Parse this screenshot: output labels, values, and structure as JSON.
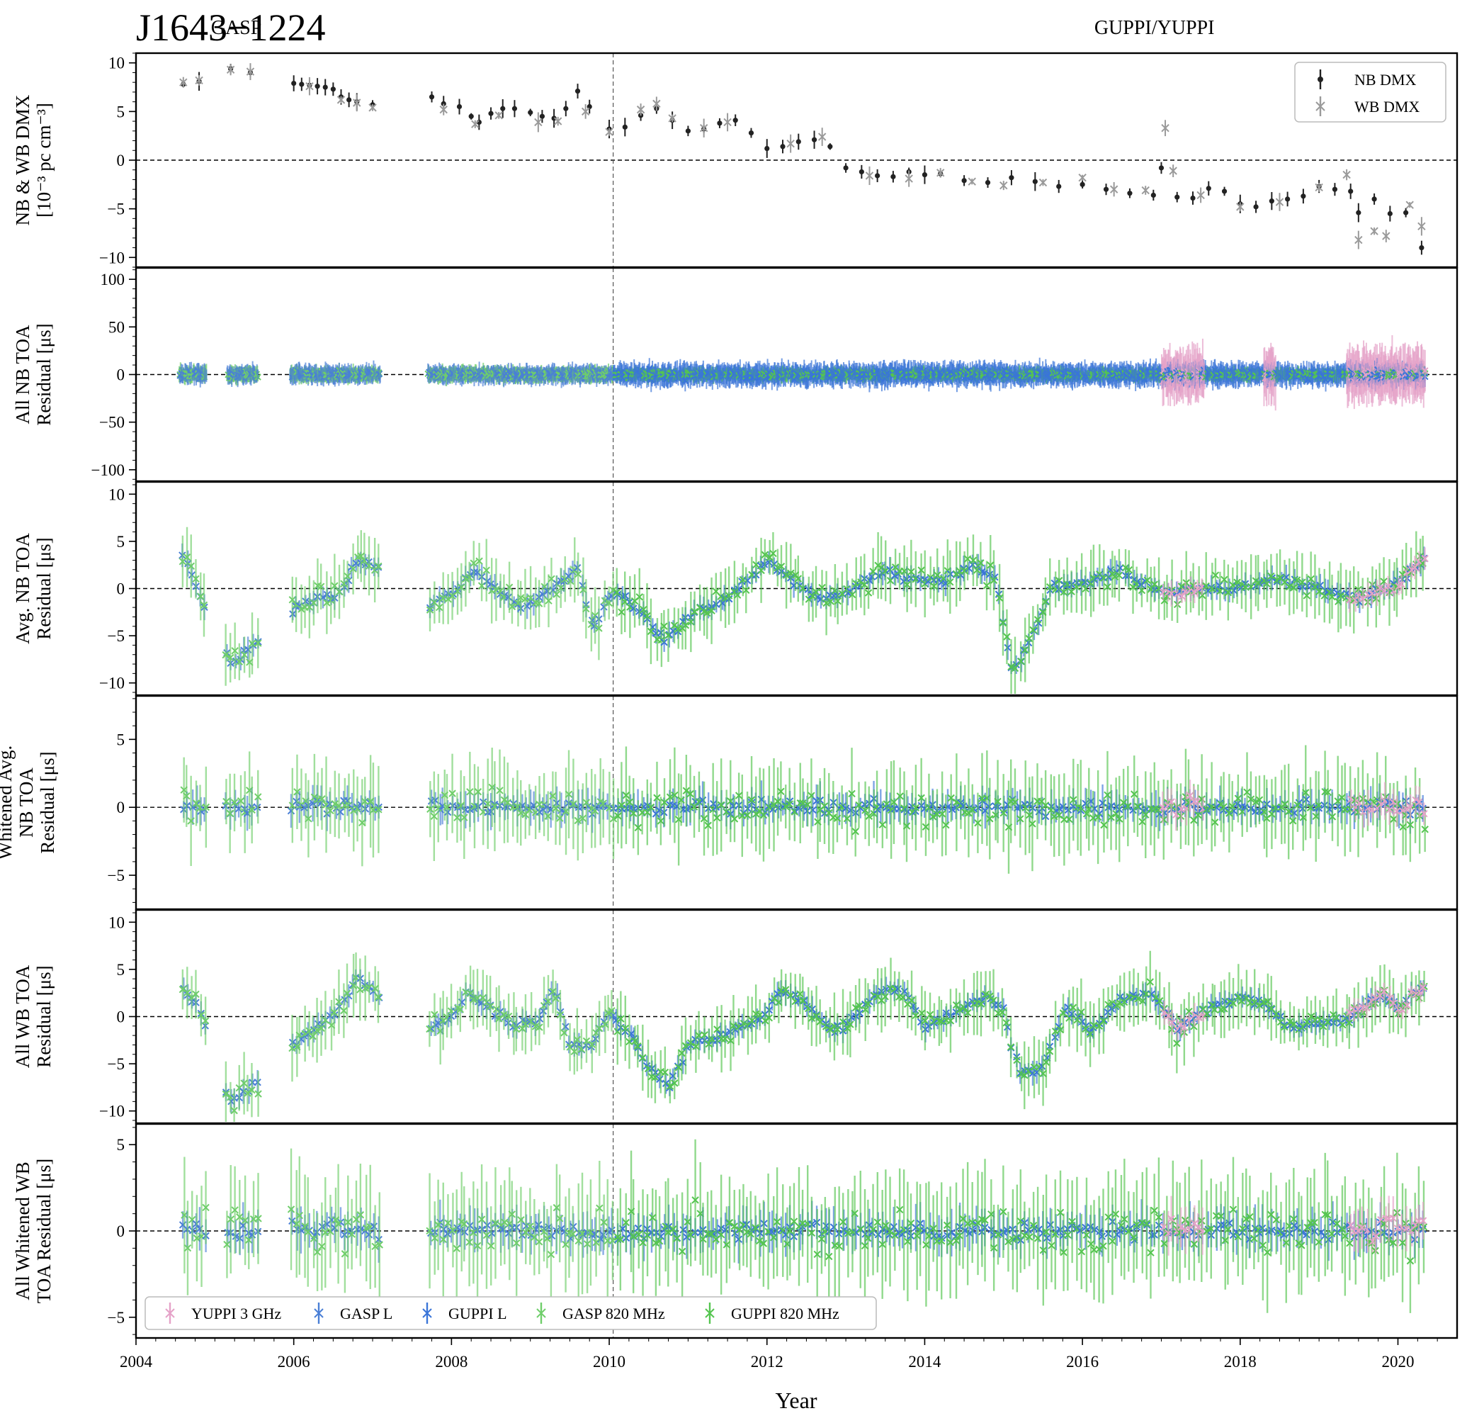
{
  "title": "J1643−1224",
  "backends": [
    {
      "label": "GASP",
      "year": 2004.95
    },
    {
      "label": "GUPPI/YUPPI",
      "year": 2016.15
    }
  ],
  "backend_split_year": 2010.05,
  "xlabel": "Year",
  "xlim": [
    2004.0,
    2020.75
  ],
  "xticks": [
    2004,
    2006,
    2008,
    2010,
    2012,
    2014,
    2016,
    2018,
    2020
  ],
  "colors": {
    "YUPPI 3 GHz": "#e5a2c8",
    "GASP L": "#4a7fd6",
    "GUPPI L": "#3a75d8",
    "GASP 820 MHz": "#6fce6a",
    "GUPPI 820 MHz": "#55c550",
    "NB DMX": "#222222",
    "WB DMX": "#9a9a9a"
  },
  "legend_top": [
    "NB DMX",
    "WB DMX"
  ],
  "legend_bottom": [
    "YUPPI 3 GHz",
    "GASP L",
    "GUPPI L",
    "GASP 820 MHz",
    "GUPPI 820 MHz"
  ],
  "chart_data": [
    {
      "type": "scatter",
      "ylabel": [
        "NB & WB DMX",
        "[10⁻³ pc cm⁻³]"
      ],
      "ylim": [
        -11,
        11
      ],
      "yticks": [
        -10,
        -5,
        0,
        5,
        10
      ],
      "legend": "top-right",
      "series": [
        {
          "name": "NB DMX",
          "marker": "dot",
          "x": [
            2004.6,
            2004.8,
            2005.2,
            2005.45,
            2006.0,
            2006.1,
            2006.2,
            2006.3,
            2006.4,
            2006.5,
            2006.6,
            2006.7,
            2006.8,
            2007.0,
            2007.75,
            2007.9,
            2008.1,
            2008.25,
            2008.35,
            2008.5,
            2008.65,
            2008.8,
            2009.0,
            2009.15,
            2009.3,
            2009.45,
            2009.6,
            2009.75,
            2010.0,
            2010.2,
            2010.4,
            2010.6,
            2010.8,
            2011.0,
            2011.2,
            2011.4,
            2011.6,
            2011.8,
            2012.0,
            2012.2,
            2012.4,
            2012.6,
            2012.8,
            2013.0,
            2013.2,
            2013.4,
            2013.6,
            2013.8,
            2014.0,
            2014.2,
            2014.5,
            2014.8,
            2015.1,
            2015.4,
            2015.7,
            2016.0,
            2016.3,
            2016.6,
            2016.9,
            2017.0,
            2017.2,
            2017.4,
            2017.6,
            2017.8,
            2018.0,
            2018.2,
            2018.4,
            2018.6,
            2018.8,
            2019.0,
            2019.2,
            2019.4,
            2019.5,
            2019.7,
            2019.9,
            2020.1,
            2020.3
          ],
          "y": [
            7.8,
            8.1,
            9.4,
            9.0,
            7.9,
            7.8,
            7.7,
            7.6,
            7.5,
            7.3,
            6.5,
            6.2,
            6.0,
            5.7,
            6.5,
            5.8,
            5.5,
            4.5,
            3.9,
            4.8,
            5.3,
            5.3,
            4.9,
            4.5,
            4.3,
            5.3,
            7.1,
            5.5,
            3.2,
            3.4,
            4.6,
            5.3,
            4.1,
            3.0,
            3.2,
            3.8,
            4.1,
            2.8,
            1.2,
            1.4,
            1.9,
            2.1,
            1.4,
            -0.8,
            -1.2,
            -1.6,
            -1.7,
            -1.2,
            -1.5,
            -1.4,
            -2.1,
            -2.3,
            -1.8,
            -2.2,
            -2.7,
            -2.5,
            -3.0,
            -3.4,
            -3.6,
            -0.8,
            -3.8,
            -3.9,
            -2.9,
            -3.2,
            -4.5,
            -4.8,
            -4.2,
            -4.0,
            -3.7,
            -2.7,
            -3.0,
            -3.2,
            -5.4,
            -4.0,
            -5.5,
            -5.4,
            -9.0
          ]
        },
        {
          "name": "WB DMX",
          "marker": "x",
          "x": [
            2004.6,
            2004.8,
            2005.2,
            2005.45,
            2006.2,
            2006.6,
            2006.8,
            2007.0,
            2007.9,
            2008.3,
            2008.6,
            2009.1,
            2009.35,
            2009.7,
            2010.0,
            2010.4,
            2010.6,
            2010.8,
            2011.2,
            2011.5,
            2012.3,
            2012.7,
            2013.3,
            2013.8,
            2014.2,
            2014.6,
            2015.0,
            2015.5,
            2016.0,
            2016.4,
            2016.8,
            2017.05,
            2017.15,
            2017.5,
            2018.0,
            2018.5,
            2019.0,
            2019.35,
            2019.5,
            2019.7,
            2019.85,
            2020.15,
            2020.3
          ],
          "y": [
            8.0,
            8.2,
            9.3,
            9.1,
            7.6,
            6.2,
            5.9,
            5.4,
            5.2,
            3.7,
            4.6,
            3.9,
            4.0,
            5.0,
            2.9,
            5.2,
            5.8,
            4.3,
            3.3,
            3.9,
            1.7,
            2.4,
            -1.6,
            -1.9,
            -1.3,
            -2.2,
            -2.6,
            -2.3,
            -1.8,
            -3.0,
            -3.1,
            3.3,
            -1.1,
            -3.6,
            -4.8,
            -4.3,
            -2.8,
            -1.5,
            -8.2,
            -7.3,
            -7.8,
            -4.6,
            -6.8
          ]
        }
      ]
    },
    {
      "type": "scatter",
      "ylabel": [
        "All NB TOA",
        "Residual [μs]"
      ],
      "ylim": [
        -112,
        112
      ],
      "yticks": [
        -100,
        -50,
        0,
        50,
        100
      ],
      "spread_by_group": {
        "GASP L": 8,
        "GUPPI L": 10,
        "GASP 820 MHz": 7,
        "GUPPI 820 MHz": 6,
        "YUPPI 3 GHz": 24
      }
    },
    {
      "type": "scatter",
      "ylabel": [
        "Avg. NB TOA",
        "Residual [μs]"
      ],
      "ylim": [
        -11.3,
        11.3
      ],
      "yticks": [
        -10,
        -5,
        0,
        5,
        10
      ],
      "trend_x": [
        2004.6,
        2005.2,
        2005.5,
        2006.0,
        2006.3,
        2006.6,
        2006.8,
        2007.0,
        2007.75,
        2008.0,
        2008.3,
        2008.6,
        2008.9,
        2009.3,
        2009.6,
        2009.8,
        2010.0,
        2010.3,
        2010.7,
        2011.0,
        2011.5,
        2012.0,
        2012.3,
        2012.6,
        2013.0,
        2013.5,
        2013.8,
        2014.2,
        2014.6,
        2014.9,
        2015.1,
        2015.3,
        2015.6,
        2016.0,
        2016.5,
        2017.0,
        2017.5,
        2018.0,
        2018.5,
        2019.0,
        2019.5,
        2020.0,
        2020.3
      ],
      "trend_y": [
        3.5,
        -8.0,
        -6.0,
        -2.0,
        -1.0,
        -0.5,
        3.0,
        2.5,
        -2.0,
        -0.5,
        2.0,
        -0.5,
        -2.0,
        0.0,
        2.0,
        -4.5,
        -0.5,
        -1.5,
        -5.5,
        -3.0,
        -1.0,
        3.0,
        1.0,
        -1.0,
        -0.5,
        2.0,
        1.0,
        0.5,
        2.5,
        1.0,
        -8.5,
        -6.5,
        0.0,
        0.5,
        2.0,
        -0.5,
        0.0,
        0.0,
        1.0,
        0.0,
        -1.0,
        0.5,
        3.0
      ]
    },
    {
      "type": "scatter",
      "ylabel": [
        "Whitened Avg.",
        "NB TOA",
        "Residual [μs]"
      ],
      "ylim": [
        -7.5,
        8.2
      ],
      "yticks": [
        -5,
        0,
        5
      ],
      "trend_x": [
        2004.6,
        2007.0,
        2008.0,
        2009.0,
        2010.0,
        2011.0,
        2012.0,
        2013.0,
        2014.0,
        2015.0,
        2016.0,
        2017.0,
        2018.0,
        2019.0,
        2020.3
      ],
      "trend_y": [
        0,
        0,
        0,
        0,
        0,
        0,
        0,
        0,
        0,
        0,
        0,
        0,
        0,
        0,
        0
      ]
    },
    {
      "type": "scatter",
      "ylabel": [
        "All WB TOA",
        "Residual [μs]"
      ],
      "ylim": [
        -11.3,
        11.3
      ],
      "yticks": [
        -10,
        -5,
        0,
        5,
        10
      ],
      "trend_x": [
        2004.6,
        2004.8,
        2005.2,
        2005.45,
        2006.0,
        2006.4,
        2006.6,
        2006.8,
        2007.0,
        2007.75,
        2008.0,
        2008.2,
        2008.5,
        2008.8,
        2009.1,
        2009.3,
        2009.5,
        2009.75,
        2010.0,
        2010.3,
        2010.5,
        2010.75,
        2011.0,
        2011.5,
        2012.0,
        2012.2,
        2012.5,
        2012.8,
        2013.0,
        2013.4,
        2013.7,
        2014.0,
        2014.4,
        2014.8,
        2015.0,
        2015.2,
        2015.5,
        2015.8,
        2016.1,
        2016.5,
        2016.9,
        2017.2,
        2017.5,
        2018.0,
        2018.3,
        2018.6,
        2019.0,
        2019.4,
        2019.8,
        2020.0,
        2020.3
      ],
      "trend_y": [
        3.0,
        1.0,
        -9.0,
        -7.5,
        -3.0,
        -0.5,
        1.0,
        4.0,
        2.5,
        -1.0,
        0.0,
        2.5,
        1.0,
        -1.0,
        -0.5,
        3.0,
        -3.0,
        -3.5,
        0.5,
        -2.0,
        -5.5,
        -7.5,
        -3.0,
        -2.0,
        0.5,
        3.0,
        1.5,
        -1.5,
        -1.0,
        2.5,
        3.0,
        -1.0,
        0.5,
        2.0,
        0.5,
        -6.0,
        -5.5,
        1.0,
        -1.5,
        2.0,
        2.5,
        -1.5,
        0.5,
        2.0,
        1.5,
        -1.0,
        -1.0,
        0.0,
        2.5,
        1.0,
        3.0
      ]
    },
    {
      "type": "scatter",
      "ylabel": [
        "All Whitened WB",
        "TOA Residual [μs]"
      ],
      "ylim": [
        -6.2,
        6.2
      ],
      "yticks": [
        -5,
        0,
        5
      ],
      "legend": "bottom-left",
      "trend_x": [
        2004.6,
        2007.0,
        2008.0,
        2009.0,
        2010.0,
        2011.0,
        2012.0,
        2013.0,
        2014.0,
        2015.0,
        2016.0,
        2017.0,
        2018.0,
        2019.0,
        2020.3
      ],
      "trend_y": [
        0,
        0,
        0,
        0,
        0,
        0,
        0,
        0,
        0,
        0,
        0,
        0,
        0,
        0,
        0
      ]
    }
  ]
}
